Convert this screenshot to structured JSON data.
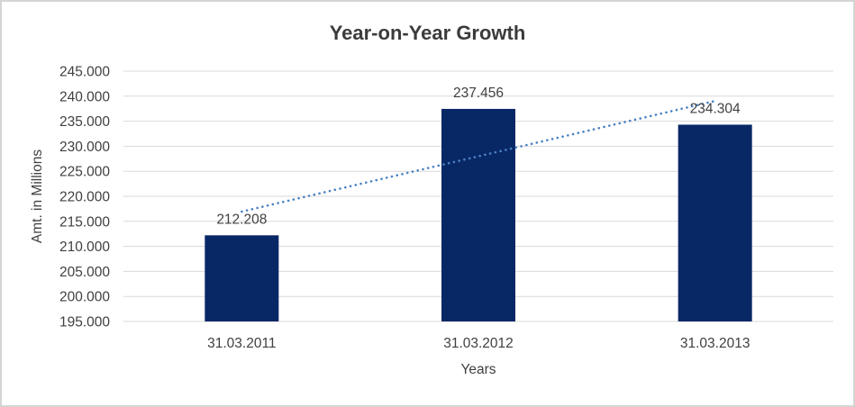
{
  "chart_data": {
    "type": "bar",
    "title": "Year-on-Year Growth",
    "xlabel": "Years",
    "ylabel": "Amt. in Millions",
    "categories": [
      "31.03.2011",
      "31.03.2012",
      "31.03.2013"
    ],
    "values": [
      212208,
      237456,
      234304
    ],
    "data_labels": [
      "212.208",
      "237.456",
      "234.304"
    ],
    "ylim": [
      195000,
      245000
    ],
    "ytick_step": 5000,
    "ytick_labels": [
      "195.000",
      "200.000",
      "205.000",
      "210.000",
      "215.000",
      "220.000",
      "225.000",
      "230.000",
      "235.000",
      "240.000",
      "245.000"
    ],
    "grid": true,
    "legend": "none",
    "trendline": {
      "type": "linear",
      "style": "dotted"
    },
    "colors": {
      "bar": "#082765",
      "trendline": "#4A82C6",
      "gridline": "#D9D9D9",
      "axis_text": "#404040",
      "title_text": "#3B3B3B",
      "background": "#FFFFFF",
      "border": "#D5D5D5"
    }
  }
}
